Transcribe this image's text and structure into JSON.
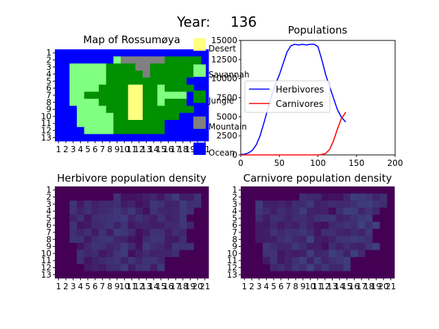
{
  "year_label": "Year:",
  "year_value": "136",
  "colors": {
    "ocean": "#0000ff",
    "savannah": "#80ff80",
    "jungle": "#009000",
    "mountain": "#808080",
    "desert": "#ffff80",
    "herb_line": "#0000ff",
    "carn_line": "#ff0000",
    "density_bg": "#440154",
    "density_hi": "#3b528b"
  },
  "map_panel": {
    "title": "Map of Rossumøya",
    "x_ticks": [
      "1",
      "2",
      "3",
      "4",
      "5",
      "6",
      "7",
      "8",
      "9",
      "10",
      "11",
      "12",
      "13",
      "14",
      "15",
      "16",
      "17",
      "18",
      "19",
      "20",
      "21"
    ],
    "y_ticks": [
      "1",
      "2",
      "3",
      "4",
      "5",
      "6",
      "7",
      "8",
      "9",
      "10",
      "11",
      "12",
      "13"
    ],
    "rows": [
      "WWWWWWWWWWWWWWWWWWWWW",
      "WWWWWWWWSMMMMMMJJJJJW",
      "WWSSSSSJJJJMMJJJJJJJW",
      "WWSSSSSJJJJJMJJJJJJWW",
      "WWSSSSSJJJJJJJJJJJWWW",
      "WWSSSSJJJJDDJJSJJJJWW",
      "WWSSJJJJJJDDJJSSSSWWW",
      "WWSSSSJJJJDDJJSJJJWWW",
      "WWWSSSSJJJDDJJJJJJJWW",
      "WWWSSSSSJJDDJJJJJWWWW",
      "WWWSSSSSJJJJJJJWWWWWW",
      "WWWWSSSSJJJJJJJWWWWWW",
      "WWWWWWWWWWWWWWWWWWWWW"
    ]
  },
  "legend": {
    "items": [
      {
        "label": "Desert",
        "color": "#ffff80"
      },
      {
        "label": "Savannah",
        "color": "#80ff80"
      },
      {
        "label": "Jungle",
        "color": "#009000"
      },
      {
        "label": "Mountain",
        "color": "#808080"
      },
      {
        "label": "Ocean",
        "color": "#0000ff"
      }
    ]
  },
  "chart_data": {
    "type": "line",
    "title": "Populations",
    "xlim": [
      0,
      200
    ],
    "ylim": [
      0,
      15000
    ],
    "x_ticks": [
      "0",
      "50",
      "100",
      "150",
      "200"
    ],
    "y_ticks": [
      "0",
      "2500",
      "5000",
      "7500",
      "10000",
      "12500",
      "15000"
    ],
    "series": [
      {
        "name": "Herbivores",
        "color": "#0000ff",
        "x": [
          0,
          5,
          10,
          15,
          20,
          25,
          30,
          35,
          40,
          45,
          50,
          55,
          60,
          65,
          70,
          75,
          80,
          85,
          90,
          95,
          100,
          105,
          110,
          115,
          120,
          125,
          130,
          136
        ],
        "y": [
          50,
          100,
          250,
          600,
          1300,
          2500,
          4200,
          6000,
          7800,
          9300,
          10500,
          12000,
          13500,
          14300,
          14500,
          14400,
          14500,
          14400,
          14500,
          14500,
          14200,
          12500,
          10500,
          9000,
          7500,
          6000,
          5000,
          4300
        ]
      },
      {
        "name": "Carnivores",
        "color": "#ff0000",
        "x": [
          0,
          20,
          40,
          60,
          80,
          100,
          105,
          110,
          115,
          120,
          125,
          130,
          136
        ],
        "y": [
          0,
          0,
          0,
          0,
          0,
          0,
          50,
          200,
          700,
          1800,
          3300,
          4700,
          5600
        ]
      }
    ]
  },
  "herb_density": {
    "title": "Herbivore population density",
    "x_ticks": [
      "1",
      "2",
      "3",
      "4",
      "5",
      "6",
      "7",
      "8",
      "9",
      "10",
      "11",
      "12",
      "13",
      "14",
      "15",
      "16",
      "17",
      "18",
      "19",
      "20",
      "21"
    ],
    "y_ticks": [
      "1",
      "2",
      "3",
      "4",
      "5",
      "6",
      "7",
      "8",
      "9",
      "10",
      "11",
      "12",
      "13"
    ]
  },
  "carn_density": {
    "title": "Carnivore population density",
    "x_ticks": [
      "1",
      "2",
      "3",
      "4",
      "5",
      "6",
      "7",
      "8",
      "9",
      "10",
      "11",
      "12",
      "13",
      "14",
      "15",
      "16",
      "17",
      "18",
      "19",
      "20",
      "21"
    ],
    "y_ticks": [
      "1",
      "2",
      "3",
      "4",
      "5",
      "6",
      "7",
      "8",
      "9",
      "10",
      "11",
      "12",
      "13"
    ]
  }
}
